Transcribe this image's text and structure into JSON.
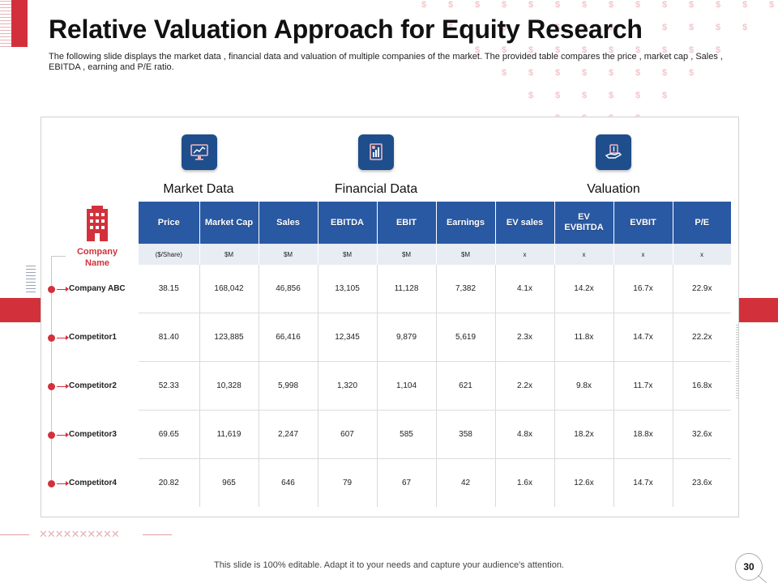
{
  "title": "Relative Valuation Approach for Equity Research",
  "subtitle": "The following slide displays the market data , financial data and valuation of multiple companies of the market. The provided table compares the price , market cap , Sales , EBITDA , earning and P/E ratio.",
  "sections": {
    "market": "Market Data",
    "financial": "Financial Data",
    "valuation": "Valuation"
  },
  "icons": {
    "market": "monitor-chart-icon",
    "financial": "document-chart-icon",
    "valuation": "hand-coins-icon",
    "company": "building-icon"
  },
  "company_label": "Company Name",
  "columns": [
    "Price",
    "Market Cap",
    "Sales",
    "EBITDA",
    "EBIT",
    "Earnings",
    "EV sales",
    "EV EVBITDA",
    "EVBIT",
    "P/E"
  ],
  "units": [
    "($/Share)",
    "$M",
    "$M",
    "$M",
    "$M",
    "$M",
    "x",
    "x",
    "x",
    "x"
  ],
  "rows": [
    {
      "name": "Company ABC",
      "values": [
        "38.15",
        "168,042",
        "46,856",
        "13,105",
        "11,128",
        "7,382",
        "4.1x",
        "14.2x",
        "16.7x",
        "22.9x"
      ]
    },
    {
      "name": "Competitor1",
      "values": [
        "81.40",
        "123,885",
        "66,416",
        "12,345",
        "9,879",
        "5,619",
        "2.3x",
        "11.8x",
        "14.7x",
        "22.2x"
      ]
    },
    {
      "name": "Competitor2",
      "values": [
        "52.33",
        "10,328",
        "5,998",
        "1,320",
        "1,104",
        "621",
        "2.2x",
        "9.8x",
        "11.7x",
        "16.8x"
      ]
    },
    {
      "name": "Competitor3",
      "values": [
        "69.65",
        "11,619",
        "2,247",
        "607",
        "585",
        "358",
        "4.8x",
        "18.2x",
        "18.8x",
        "32.6x"
      ]
    },
    {
      "name": "Competitor4",
      "values": [
        "20.82",
        "965",
        "646",
        "79",
        "67",
        "42",
        "1.6x",
        "12.6x",
        "14.7x",
        "23.6x"
      ]
    }
  ],
  "footer": "This slide is 100% editable. Adapt it to your needs and capture your audience's attention.",
  "page_number": "30",
  "colors": {
    "accent_red": "#d2313c",
    "header_blue": "#2a59a3",
    "icon_blue": "#1f4e8c"
  }
}
